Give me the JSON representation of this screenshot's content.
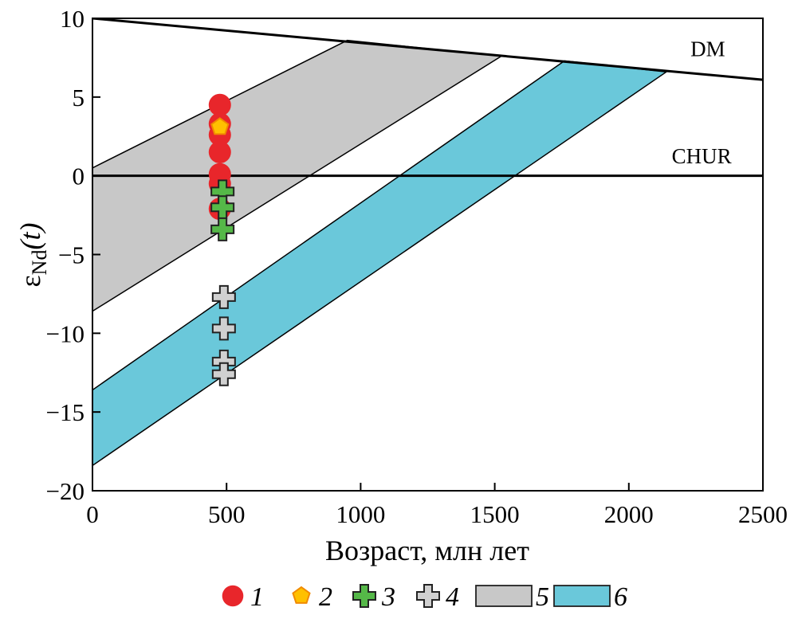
{
  "chart_data": {
    "type": "scatter",
    "title": "",
    "xlabel": "Возраст, млн лет",
    "ylabel": "εNd(t)",
    "ylabel_main": "ε",
    "ylabel_sub": "Nd",
    "ylabel_paren": "(t)",
    "xlim": [
      0,
      2500
    ],
    "ylim": [
      -20,
      10
    ],
    "xticks": [
      0,
      500,
      1000,
      1500,
      2000,
      2500
    ],
    "yticks": [
      10,
      5,
      0,
      -5,
      -10,
      -15,
      -20
    ],
    "xtick_labels": [
      "0",
      "500",
      "1000",
      "1500",
      "2000",
      "2500"
    ],
    "ytick_labels": [
      "10",
      "5",
      "0",
      "−5",
      "−10",
      "−15",
      "−20"
    ],
    "grid": false,
    "legend_position": "bottom",
    "reference_lines": [
      {
        "name": "DM",
        "label": "DM",
        "points": [
          [
            0,
            10
          ],
          [
            2500,
            6.1
          ]
        ]
      },
      {
        "name": "CHUR",
        "label": "CHUR",
        "points": [
          [
            0,
            0
          ],
          [
            2500,
            0
          ]
        ]
      }
    ],
    "bands": [
      {
        "legend": "5",
        "color": "#c8c8c8",
        "polygon": [
          [
            0,
            0.5
          ],
          [
            950,
            8.6
          ],
          [
            1525,
            7.6
          ],
          [
            0,
            -8.6
          ]
        ]
      },
      {
        "legend": "6",
        "color": "#6ac8da",
        "polygon": [
          [
            0,
            -13.6
          ],
          [
            1760,
            7.3
          ],
          [
            2140,
            6.6
          ],
          [
            0,
            -18.4
          ]
        ]
      }
    ],
    "series": [
      {
        "name": "1",
        "marker": "circle",
        "color": "#e8262b",
        "points": [
          [
            475,
            4.5
          ],
          [
            475,
            3.3
          ],
          [
            475,
            2.6
          ],
          [
            475,
            1.5
          ],
          [
            475,
            0.1
          ],
          [
            475,
            -0.5
          ],
          [
            475,
            -2.1
          ]
        ]
      },
      {
        "name": "2",
        "marker": "pentagon",
        "color": "#ffc000",
        "edge": "#f08a00",
        "points": [
          [
            475,
            3.1
          ]
        ]
      },
      {
        "name": "3",
        "marker": "cross",
        "color": "#55b848",
        "points": [
          [
            485,
            -1.0
          ],
          [
            485,
            -2.0
          ],
          [
            485,
            -3.4
          ]
        ]
      },
      {
        "name": "4",
        "marker": "cross",
        "color": "#d0d0d0",
        "points": [
          [
            490,
            -7.7
          ],
          [
            490,
            -9.7
          ],
          [
            490,
            -11.8
          ],
          [
            490,
            -12.6
          ]
        ]
      }
    ],
    "legend": [
      {
        "label": "1",
        "marker": "circle",
        "color": "#e8262b"
      },
      {
        "label": "2",
        "marker": "pentagon",
        "color": "#ffc000",
        "edge": "#f08a00"
      },
      {
        "label": "3",
        "marker": "cross",
        "color": "#55b848"
      },
      {
        "label": "4",
        "marker": "cross",
        "color": "#d0d0d0"
      },
      {
        "label": "5",
        "marker": "rect",
        "color": "#c8c8c8"
      },
      {
        "label": "6",
        "marker": "rect",
        "color": "#6ac8da"
      }
    ]
  }
}
